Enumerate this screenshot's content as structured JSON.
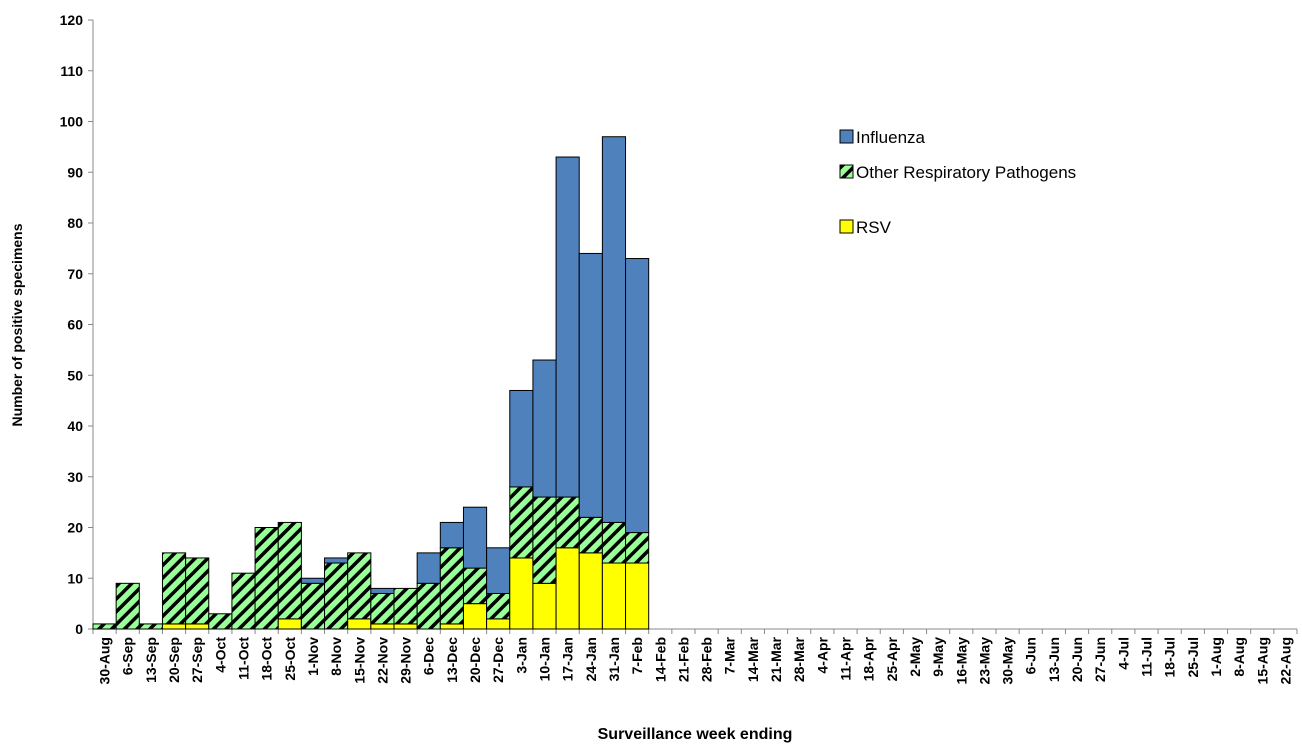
{
  "chart_data": {
    "type": "stacked-bar",
    "y_label": "Number of positive specimens",
    "x_label": "Surveillance week ending",
    "categories": [
      "30-Aug",
      "6-Sep",
      "13-Sep",
      "20-Sep",
      "27-Sep",
      "4-Oct",
      "11-Oct",
      "18-Oct",
      "25-Oct",
      "1-Nov",
      "8-Nov",
      "15-Nov",
      "22-Nov",
      "29-Nov",
      "6-Dec",
      "13-Dec",
      "20-Dec",
      "27-Dec",
      "3-Jan",
      "10-Jan",
      "17-Jan",
      "24-Jan",
      "31-Jan",
      "7-Feb",
      "14-Feb",
      "21-Feb",
      "28-Feb",
      "7-Mar",
      "14-Mar",
      "21-Mar",
      "28-Mar",
      "4-Apr",
      "11-Apr",
      "18-Apr",
      "25-Apr",
      "2-May",
      "9-May",
      "16-May",
      "23-May",
      "30-May",
      "6-Jun",
      "13-Jun",
      "20-Jun",
      "27-Jun",
      "4-Jul",
      "11-Jul",
      "18-Jul",
      "25-Jul",
      "1-Aug",
      "8-Aug",
      "15-Aug",
      "22-Aug"
    ],
    "series": [
      {
        "name": "RSV",
        "color": "#ffff00",
        "hatch": false,
        "values": [
          0,
          0,
          0,
          1,
          1,
          0,
          0,
          0,
          2,
          0,
          0,
          2,
          1,
          1,
          0,
          1,
          5,
          2,
          14,
          9,
          16,
          15,
          13,
          13,
          null,
          null,
          null,
          null,
          null,
          null,
          null,
          null,
          null,
          null,
          null,
          null,
          null,
          null,
          null,
          null,
          null,
          null,
          null,
          null,
          null,
          null,
          null,
          null,
          null,
          null,
          null,
          null
        ]
      },
      {
        "name": "Other Respiratory Pathogens",
        "color": "#99ff99",
        "hatch": true,
        "values": [
          1,
          9,
          1,
          14,
          13,
          3,
          11,
          20,
          19,
          9,
          13,
          13,
          6,
          7,
          9,
          15,
          7,
          5,
          14,
          17,
          10,
          7,
          8,
          6,
          null,
          null,
          null,
          null,
          null,
          null,
          null,
          null,
          null,
          null,
          null,
          null,
          null,
          null,
          null,
          null,
          null,
          null,
          null,
          null,
          null,
          null,
          null,
          null,
          null,
          null,
          null,
          null
        ]
      },
      {
        "name": "Influenza",
        "color": "#4f81bd",
        "hatch": false,
        "values": [
          0,
          0,
          0,
          0,
          0,
          0,
          0,
          0,
          0,
          1,
          1,
          0,
          1,
          0,
          6,
          5,
          12,
          9,
          19,
          27,
          67,
          52,
          76,
          54,
          null,
          null,
          null,
          null,
          null,
          null,
          null,
          null,
          null,
          null,
          null,
          null,
          null,
          null,
          null,
          null,
          null,
          null,
          null,
          null,
          null,
          null,
          null,
          null,
          null,
          null,
          null,
          null
        ]
      }
    ],
    "ylim": [
      0,
      120
    ],
    "yticks": [
      0,
      10,
      20,
      30,
      40,
      50,
      60,
      70,
      80,
      90,
      100,
      110,
      120
    ],
    "legend": "right"
  }
}
